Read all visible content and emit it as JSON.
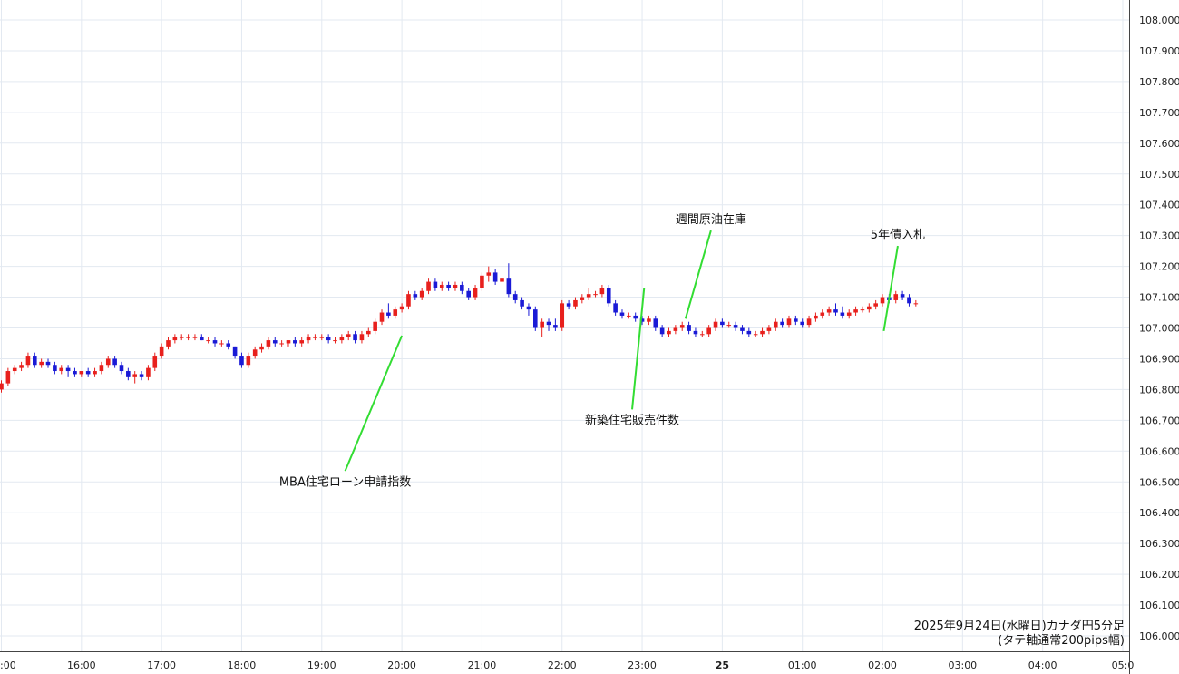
{
  "chart_data": {
    "type": "candlestick",
    "caption_line1": "2025年9月24日(水曜日)カナダ円5分足",
    "caption_line2": "(タテ軸通常200pips幅)",
    "ylim": [
      105.975,
      108.05
    ],
    "y_ticks": [
      "106.000",
      "106.100",
      "106.200",
      "106.300",
      "106.400",
      "106.500",
      "106.600",
      "106.700",
      "106.800",
      "106.900",
      "107.000",
      "107.100",
      "107.200",
      "107.300",
      "107.400",
      "107.500",
      "107.600",
      "107.700",
      "107.800",
      "107.900",
      "108.000"
    ],
    "x_ticks": [
      {
        "label": ":00",
        "t": 0
      },
      {
        "label": "16:00",
        "t": 12
      },
      {
        "label": "17:00",
        "t": 24
      },
      {
        "label": "18:00",
        "t": 36
      },
      {
        "label": "19:00",
        "t": 48
      },
      {
        "label": "20:00",
        "t": 60
      },
      {
        "label": "21:00",
        "t": 72
      },
      {
        "label": "22:00",
        "t": 84
      },
      {
        "label": "23:00",
        "t": 96
      },
      {
        "label": "25",
        "t": 108,
        "bold": true
      },
      {
        "label": "01:00",
        "t": 120
      },
      {
        "label": "02:00",
        "t": 132
      },
      {
        "label": "03:00",
        "t": 144
      },
      {
        "label": "04:00",
        "t": 156
      },
      {
        "label": "05:0",
        "t": 168
      }
    ],
    "bull_color": "#e8201d",
    "bear_color": "#1a1ad6",
    "annotation_line_color": "#33dd33",
    "annotations": [
      {
        "text": "MBA住宅ローン申請指数",
        "t": 60,
        "price": 106.975,
        "text_price": 106.5,
        "text_t": 51.5
      },
      {
        "text": "新築住宅販売件数",
        "t": 96.3,
        "price": 107.13,
        "text_price": 106.7,
        "text_t": 94.5
      },
      {
        "text": "週間原油在庫",
        "t": 102.5,
        "price": 107.03,
        "text_price": 107.34,
        "text_t": 106.3
      },
      {
        "text": "5年債入札",
        "t": 132.2,
        "price": 106.99,
        "text_price": 107.29,
        "text_t": 134.3
      }
    ],
    "candles": [
      [
        106.8,
        106.83,
        106.79,
        106.82
      ],
      [
        106.82,
        106.87,
        106.81,
        106.86
      ],
      [
        106.86,
        106.88,
        106.85,
        106.87
      ],
      [
        106.87,
        106.89,
        106.86,
        106.88
      ],
      [
        106.88,
        106.92,
        106.87,
        106.91
      ],
      [
        106.91,
        106.92,
        106.87,
        106.88
      ],
      [
        106.88,
        106.9,
        106.87,
        106.89
      ],
      [
        106.89,
        106.9,
        106.87,
        106.88
      ],
      [
        106.88,
        106.89,
        106.85,
        106.86
      ],
      [
        106.86,
        106.88,
        106.85,
        106.87
      ],
      [
        106.87,
        106.88,
        106.84,
        106.86
      ],
      [
        106.86,
        106.87,
        106.84,
        106.85
      ],
      [
        106.85,
        106.86,
        106.84,
        106.86
      ],
      [
        106.86,
        106.87,
        106.84,
        106.85
      ],
      [
        106.85,
        106.87,
        106.84,
        106.86
      ],
      [
        106.86,
        106.89,
        106.85,
        106.88
      ],
      [
        106.88,
        106.91,
        106.87,
        106.9
      ],
      [
        106.9,
        106.91,
        106.87,
        106.88
      ],
      [
        106.88,
        106.89,
        106.85,
        106.86
      ],
      [
        106.86,
        106.87,
        106.83,
        106.84
      ],
      [
        106.84,
        106.86,
        106.82,
        106.85
      ],
      [
        106.85,
        106.86,
        106.83,
        106.84
      ],
      [
        106.84,
        106.88,
        106.83,
        106.87
      ],
      [
        106.87,
        106.92,
        106.86,
        106.91
      ],
      [
        106.91,
        106.95,
        106.9,
        106.94
      ],
      [
        106.94,
        106.97,
        106.93,
        106.96
      ],
      [
        106.96,
        106.98,
        106.95,
        106.97
      ],
      [
        106.97,
        106.98,
        106.96,
        106.97
      ],
      [
        106.97,
        106.98,
        106.96,
        106.97
      ],
      [
        106.97,
        106.98,
        106.96,
        106.97
      ],
      [
        106.97,
        106.98,
        106.96,
        106.96
      ],
      [
        106.96,
        106.97,
        106.95,
        106.96
      ],
      [
        106.96,
        106.97,
        106.94,
        106.95
      ],
      [
        106.95,
        106.96,
        106.94,
        106.95
      ],
      [
        106.95,
        106.96,
        106.93,
        106.94
      ],
      [
        106.94,
        106.94,
        106.9,
        106.91
      ],
      [
        106.91,
        106.92,
        106.87,
        106.88
      ],
      [
        106.88,
        106.92,
        106.87,
        106.91
      ],
      [
        106.91,
        106.94,
        106.9,
        106.93
      ],
      [
        106.93,
        106.95,
        106.92,
        106.94
      ],
      [
        106.94,
        106.97,
        106.93,
        106.96
      ],
      [
        106.96,
        106.97,
        106.94,
        106.95
      ],
      [
        106.95,
        106.96,
        106.94,
        106.95
      ],
      [
        106.95,
        106.96,
        106.94,
        106.96
      ],
      [
        106.96,
        106.97,
        106.94,
        106.95
      ],
      [
        106.95,
        106.97,
        106.94,
        106.96
      ],
      [
        106.96,
        106.98,
        106.95,
        106.97
      ],
      [
        106.97,
        106.98,
        106.96,
        106.97
      ],
      [
        106.97,
        106.98,
        106.96,
        106.97
      ],
      [
        106.97,
        106.98,
        106.95,
        106.96
      ],
      [
        106.96,
        106.97,
        106.95,
        106.96
      ],
      [
        106.96,
        106.98,
        106.95,
        106.97
      ],
      [
        106.97,
        106.99,
        106.96,
        106.98
      ],
      [
        106.98,
        106.99,
        106.95,
        106.96
      ],
      [
        106.96,
        106.99,
        106.95,
        106.98
      ],
      [
        106.98,
        107.0,
        106.97,
        106.99
      ],
      [
        106.99,
        107.03,
        106.98,
        107.02
      ],
      [
        107.02,
        107.06,
        107.01,
        107.05
      ],
      [
        107.05,
        107.08,
        107.03,
        107.04
      ],
      [
        107.04,
        107.07,
        107.03,
        107.06
      ],
      [
        107.06,
        107.08,
        107.05,
        107.07
      ],
      [
        107.07,
        107.12,
        107.06,
        107.11
      ],
      [
        107.11,
        107.12,
        107.09,
        107.1
      ],
      [
        107.1,
        107.13,
        107.09,
        107.12
      ],
      [
        107.12,
        107.16,
        107.11,
        107.15
      ],
      [
        107.15,
        107.16,
        107.12,
        107.13
      ],
      [
        107.13,
        107.15,
        107.12,
        107.14
      ],
      [
        107.14,
        107.15,
        107.12,
        107.13
      ],
      [
        107.13,
        107.15,
        107.12,
        107.14
      ],
      [
        107.14,
        107.15,
        107.11,
        107.12
      ],
      [
        107.12,
        107.13,
        107.09,
        107.1
      ],
      [
        107.1,
        107.14,
        107.09,
        107.13
      ],
      [
        107.13,
        107.18,
        107.12,
        107.17
      ],
      [
        107.17,
        107.2,
        107.15,
        107.18
      ],
      [
        107.18,
        107.19,
        107.14,
        107.15
      ],
      [
        107.15,
        107.17,
        107.13,
        107.16
      ],
      [
        107.16,
        107.21,
        107.1,
        107.11
      ],
      [
        107.11,
        107.12,
        107.08,
        107.09
      ],
      [
        107.09,
        107.1,
        107.06,
        107.07
      ],
      [
        107.07,
        107.08,
        107.04,
        107.06
      ],
      [
        107.06,
        107.07,
        106.99,
        107.0
      ],
      [
        107.0,
        107.03,
        106.97,
        107.02
      ],
      [
        107.02,
        107.03,
        106.99,
        107.01
      ],
      [
        107.01,
        107.03,
        106.99,
        107.0
      ],
      [
        107.0,
        107.09,
        106.99,
        107.08
      ],
      [
        107.08,
        107.09,
        107.06,
        107.07
      ],
      [
        107.07,
        107.1,
        107.06,
        107.09
      ],
      [
        107.09,
        107.11,
        107.08,
        107.1
      ],
      [
        107.1,
        107.13,
        107.09,
        107.11
      ],
      [
        107.11,
        107.12,
        107.1,
        107.11
      ],
      [
        107.11,
        107.14,
        107.1,
        107.13
      ],
      [
        107.13,
        107.14,
        107.07,
        107.08
      ],
      [
        107.08,
        107.09,
        107.04,
        107.05
      ],
      [
        107.05,
        107.06,
        107.03,
        107.04
      ],
      [
        107.04,
        107.05,
        107.03,
        107.04
      ],
      [
        107.04,
        107.05,
        107.02,
        107.03
      ],
      [
        107.03,
        107.04,
        107.01,
        107.02
      ],
      [
        107.02,
        107.04,
        107.01,
        107.03
      ],
      [
        107.03,
        107.04,
        106.99,
        107.0
      ],
      [
        107.0,
        107.01,
        106.97,
        106.98
      ],
      [
        106.98,
        107.0,
        106.97,
        106.99
      ],
      [
        106.99,
        107.01,
        106.98,
        107.0
      ],
      [
        107.0,
        107.02,
        106.99,
        107.01
      ],
      [
        107.01,
        107.02,
        106.98,
        106.99
      ],
      [
        106.99,
        107.0,
        106.97,
        106.98
      ],
      [
        106.98,
        106.99,
        106.97,
        106.98
      ],
      [
        106.98,
        107.01,
        106.97,
        107.0
      ],
      [
        107.0,
        107.03,
        106.99,
        107.02
      ],
      [
        107.02,
        107.03,
        107.0,
        107.01
      ],
      [
        107.01,
        107.02,
        107.0,
        107.01
      ],
      [
        107.01,
        107.02,
        106.99,
        107.0
      ],
      [
        107.0,
        107.01,
        106.98,
        106.99
      ],
      [
        106.99,
        107.0,
        106.97,
        106.98
      ],
      [
        106.98,
        106.99,
        106.97,
        106.98
      ],
      [
        106.98,
        107.0,
        106.97,
        106.99
      ],
      [
        106.99,
        107.01,
        106.98,
        107.0
      ],
      [
        107.0,
        107.03,
        106.99,
        107.02
      ],
      [
        107.02,
        107.03,
        107.0,
        107.01
      ],
      [
        107.01,
        107.04,
        107.0,
        107.03
      ],
      [
        107.03,
        107.04,
        107.01,
        107.02
      ],
      [
        107.02,
        107.03,
        107.0,
        107.01
      ],
      [
        107.01,
        107.04,
        107.0,
        107.03
      ],
      [
        107.03,
        107.05,
        107.02,
        107.04
      ],
      [
        107.04,
        107.06,
        107.03,
        107.05
      ],
      [
        107.05,
        107.07,
        107.04,
        107.06
      ],
      [
        107.06,
        107.08,
        107.04,
        107.05
      ],
      [
        107.05,
        107.07,
        107.03,
        107.04
      ],
      [
        107.04,
        107.06,
        107.03,
        107.05
      ],
      [
        107.05,
        107.07,
        107.04,
        107.06
      ],
      [
        107.06,
        107.07,
        107.05,
        107.06
      ],
      [
        107.06,
        107.08,
        107.05,
        107.07
      ],
      [
        107.07,
        107.09,
        107.06,
        107.08
      ],
      [
        107.08,
        107.11,
        107.07,
        107.1
      ],
      [
        107.1,
        107.11,
        107.08,
        107.09
      ],
      [
        107.09,
        107.12,
        107.08,
        107.11
      ],
      [
        107.11,
        107.12,
        107.09,
        107.1
      ],
      [
        107.1,
        107.11,
        107.07,
        107.08
      ],
      [
        107.08,
        107.09,
        107.07,
        107.08
      ]
    ]
  }
}
